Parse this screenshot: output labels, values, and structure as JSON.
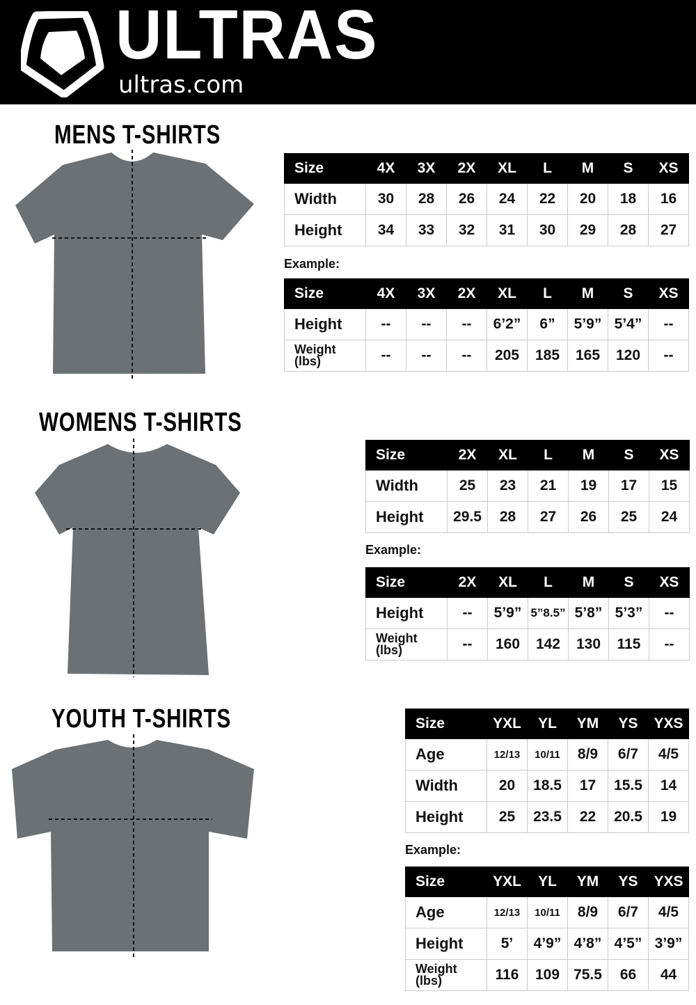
{
  "header": {
    "brand": "ULTRAS",
    "site": "ultras.com",
    "bg": "#000000"
  },
  "sections": [
    {
      "title": "MENS T-SHIRTS",
      "sizes": {
        "header": [
          "Size",
          "4X",
          "3X",
          "2X",
          "XL",
          "L",
          "M",
          "S",
          "XS"
        ],
        "rows": [
          [
            "Width",
            "30",
            "28",
            "26",
            "24",
            "22",
            "20",
            "18",
            "16"
          ],
          [
            "Height",
            "34",
            "33",
            "32",
            "31",
            "30",
            "29",
            "28",
            "27"
          ]
        ]
      },
      "example_label": "Example:",
      "example": {
        "header": [
          "Size",
          "4X",
          "3X",
          "2X",
          "XL",
          "L",
          "M",
          "S",
          "XS"
        ],
        "rows": [
          [
            "Height",
            "--",
            "--",
            "--",
            "6’2”",
            "6”",
            "5’9”",
            "5’4”",
            "--"
          ],
          [
            "Weight (lbs)",
            "--",
            "--",
            "--",
            "205",
            "185",
            "165",
            "120",
            "--"
          ]
        ]
      }
    },
    {
      "title": "WOMENS T-SHIRTS",
      "sizes": {
        "header": [
          "Size",
          "2X",
          "XL",
          "L",
          "M",
          "S",
          "XS"
        ],
        "rows": [
          [
            "Width",
            "25",
            "23",
            "21",
            "19",
            "17",
            "15"
          ],
          [
            "Height",
            "29.5",
            "28",
            "27",
            "26",
            "25",
            "24"
          ]
        ]
      },
      "example_label": "Example:",
      "example": {
        "header": [
          "Size",
          "2X",
          "XL",
          "L",
          "M",
          "S",
          "XS"
        ],
        "rows": [
          [
            "Height",
            "--",
            "5’9”",
            "5”8.5”",
            "5’8”",
            "5’3”",
            "--"
          ],
          [
            "Weight (lbs)",
            "--",
            "160",
            "142",
            "130",
            "115",
            "--"
          ]
        ]
      }
    },
    {
      "title": "YOUTH T-SHIRTS",
      "sizes": {
        "header": [
          "Size",
          "YXL",
          "YL",
          "YM",
          "YS",
          "YXS"
        ],
        "rows": [
          [
            "Age",
            "12/13",
            "10/11",
            "8/9",
            "6/7",
            "4/5"
          ],
          [
            "Width",
            "20",
            "18.5",
            "17",
            "15.5",
            "14"
          ],
          [
            "Height",
            "25",
            "23.5",
            "22",
            "20.5",
            "19"
          ]
        ]
      },
      "example_label": "Example:",
      "example": {
        "header": [
          "Size",
          "YXL",
          "YL",
          "YM",
          "YS",
          "YXS"
        ],
        "rows": [
          [
            "Age",
            "12/13",
            "10/11",
            "8/9",
            "6/7",
            "4/5"
          ],
          [
            "Height",
            "5’",
            "4’9”",
            "4’8”",
            "4’5”",
            "3’9”"
          ],
          [
            "Weight (lbs)",
            "116",
            "109",
            "75.5",
            "66",
            "44"
          ]
        ]
      }
    }
  ],
  "colors": {
    "shirt": "#6b7175",
    "table_header": "#000000"
  }
}
